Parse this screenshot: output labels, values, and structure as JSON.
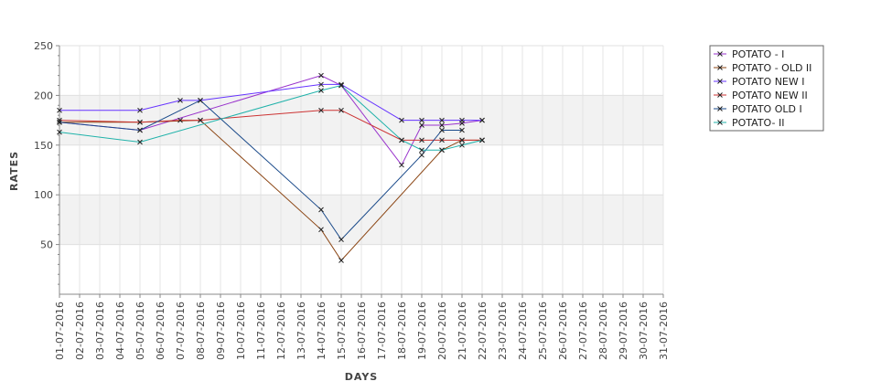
{
  "chart_data": {
    "type": "line",
    "title": "",
    "xlabel": "DAYS",
    "ylabel": "RATES",
    "ylim": [
      0,
      250
    ],
    "yticks": [
      50,
      100,
      150,
      200,
      250
    ],
    "grid": true,
    "legend_position": "top-right",
    "categories": [
      "01-07-2016",
      "02-07-2016",
      "03-07-2016",
      "04-07-2016",
      "05-07-2016",
      "06-07-2016",
      "07-07-2016",
      "08-07-2016",
      "09-07-2016",
      "10-07-2016",
      "11-07-2016",
      "12-07-2016",
      "13-07-2016",
      "14-07-2016",
      "15-07-2016",
      "16-07-2016",
      "17-07-2016",
      "18-07-2016",
      "19-07-2016",
      "20-07-2016",
      "21-07-2016",
      "22-07-2016",
      "23-07-2016",
      "24-07-2016",
      "25-07-2016",
      "26-07-2016",
      "27-07-2016",
      "28-07-2016",
      "29-07-2016",
      "30-07-2016",
      "31-07-2016"
    ],
    "series": [
      {
        "name": "POTATO - I",
        "color": "#9933cc",
        "points": [
          [
            0,
            173
          ],
          [
            4,
            165
          ],
          [
            13,
            220
          ],
          [
            14,
            210
          ],
          [
            17,
            130
          ],
          [
            18,
            170
          ],
          [
            19,
            170
          ],
          [
            20,
            172
          ],
          [
            21,
            175
          ]
        ]
      },
      {
        "name": "POTATO - OLD II",
        "color": "#8b4513",
        "points": [
          [
            0,
            173
          ],
          [
            4,
            173
          ],
          [
            7,
            175
          ],
          [
            13,
            65
          ],
          [
            14,
            34
          ],
          [
            19,
            145
          ],
          [
            20,
            155
          ],
          [
            21,
            155
          ]
        ]
      },
      {
        "name": "POTATO NEW I",
        "color": "#6633ff",
        "points": [
          [
            0,
            185
          ],
          [
            4,
            185
          ],
          [
            6,
            195
          ],
          [
            7,
            195
          ],
          [
            13,
            211
          ],
          [
            14,
            211
          ],
          [
            17,
            175
          ],
          [
            18,
            175
          ],
          [
            19,
            175
          ],
          [
            20,
            175
          ],
          [
            21,
            175
          ]
        ]
      },
      {
        "name": "POTATO NEW II",
        "color": "#cc3333",
        "points": [
          [
            0,
            175
          ],
          [
            4,
            173
          ],
          [
            6,
            175
          ],
          [
            7,
            175
          ],
          [
            13,
            185
          ],
          [
            14,
            185
          ],
          [
            17,
            155
          ],
          [
            18,
            155
          ],
          [
            19,
            155
          ],
          [
            20,
            155
          ],
          [
            21,
            155
          ]
        ]
      },
      {
        "name": "POTATO OLD I",
        "color": "#1a4a8a",
        "points": [
          [
            0,
            173
          ],
          [
            4,
            165
          ],
          [
            7,
            195
          ],
          [
            13,
            85
          ],
          [
            14,
            55
          ],
          [
            18,
            140
          ],
          [
            19,
            165
          ],
          [
            20,
            165
          ]
        ]
      },
      {
        "name": "POTATO- II",
        "color": "#20b2aa",
        "points": [
          [
            0,
            163
          ],
          [
            4,
            153
          ],
          [
            13,
            205
          ],
          [
            14,
            210
          ],
          [
            17,
            155
          ],
          [
            18,
            145
          ],
          [
            19,
            145
          ],
          [
            20,
            150
          ],
          [
            21,
            155
          ]
        ]
      }
    ]
  }
}
